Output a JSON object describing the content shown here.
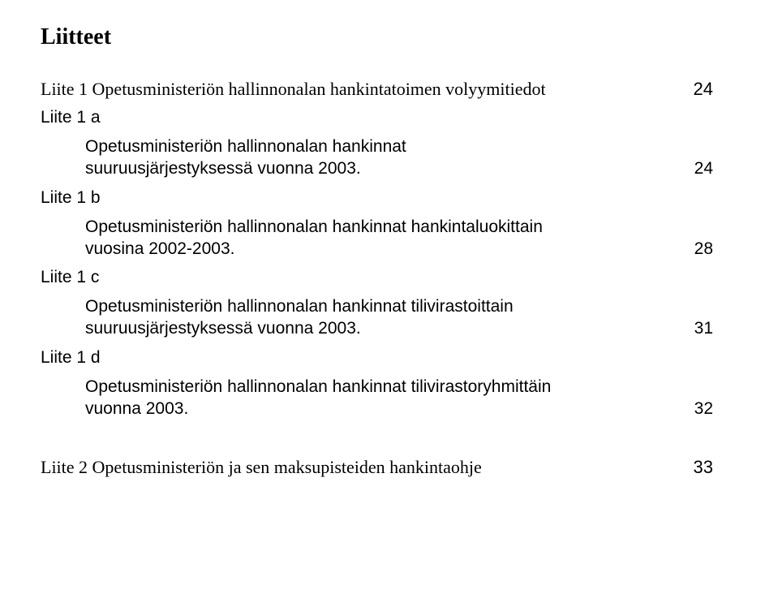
{
  "title": "Liitteet",
  "liite1": {
    "label": "Liite 1 Opetusministeriön hallinnonalan hankintatoimen volyymitiedot",
    "page": "24",
    "a": {
      "label": "Liite 1 a",
      "text1": "Opetusministeriön hallinnonalan hankinnat",
      "text2": "suuruusjärjestyksessä vuonna 2003.",
      "page": "24"
    },
    "b": {
      "label": "Liite 1 b",
      "text1": "Opetusministeriön hallinnonalan hankinnat hankintaluokittain",
      "text2": "vuosina 2002-2003.",
      "page": "28"
    },
    "c": {
      "label": "Liite 1 c",
      "text1": "Opetusministeriön hallinnonalan hankinnat tilivirastoittain",
      "text2": "suuruusjärjestyksessä vuonna 2003.",
      "page": "31"
    },
    "d": {
      "label": "Liite 1 d",
      "text1": "Opetusministeriön hallinnonalan hankinnat tilivirastoryhmittäin",
      "text2": "vuonna 2003.",
      "page": "32"
    }
  },
  "liite2": {
    "label": "Liite 2 Opetusministeriön ja sen maksupisteiden hankintaohje",
    "page": "33"
  },
  "colors": {
    "background": "#ffffff",
    "text": "#000000"
  },
  "fonts": {
    "serif": "Georgia",
    "sans": "Helvetica",
    "title_size_pt": 28,
    "body_size_pt": 22,
    "sub_size_pt": 21
  }
}
